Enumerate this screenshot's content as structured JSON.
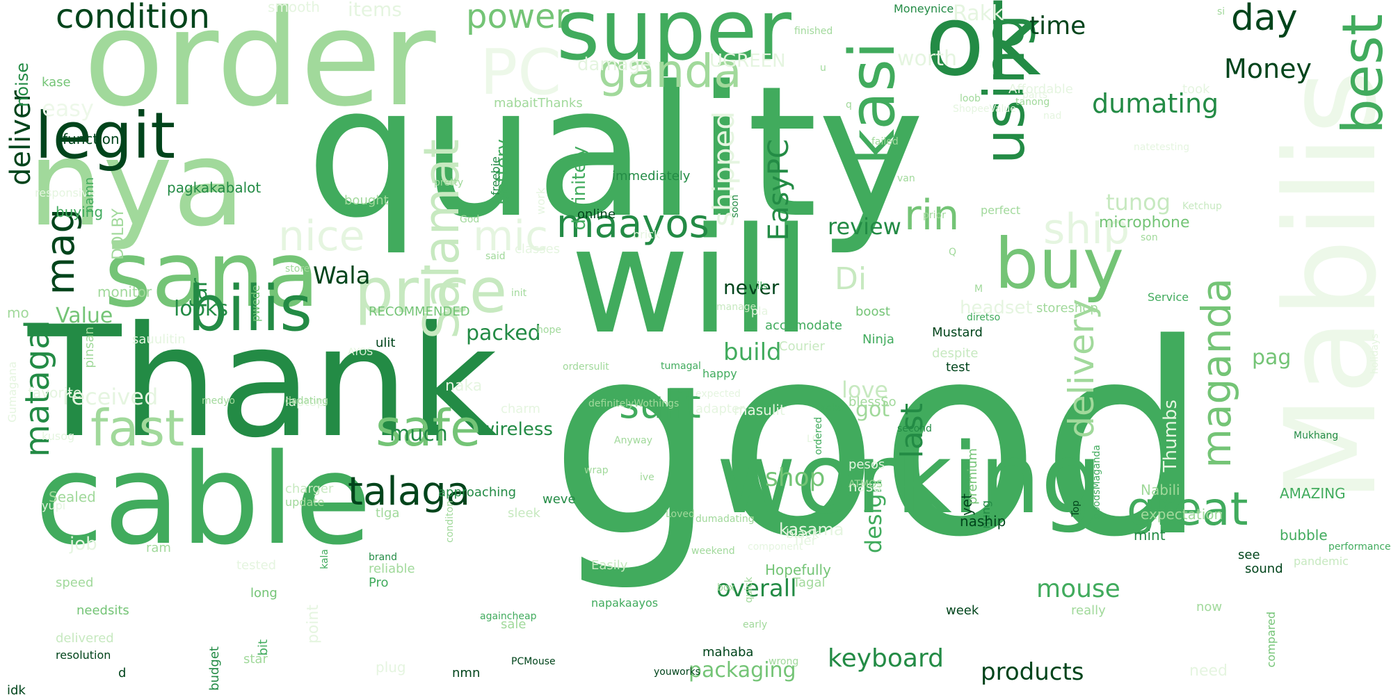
{
  "words": [
    "good",
    "quality",
    "Thank",
    "will",
    "order",
    "cable",
    "working",
    "nya",
    "sana",
    "super",
    "ok",
    "Mabilis",
    "kasi",
    "price",
    "buy",
    "legit",
    "using",
    "bilis",
    "best",
    "great",
    "talaga",
    "ganda",
    "PC",
    "Salamat",
    "safe",
    "fast",
    "maganda",
    "nice",
    "ship",
    "maayos",
    "rin",
    "mic",
    "mag",
    "sulit",
    "delivery",
    "matagal",
    "power",
    "condition",
    "day",
    "Money",
    "dumating",
    "EasyPC",
    "shipped",
    "deliver",
    "review",
    "Di",
    "Wala",
    "overall",
    "mouse",
    "keyboard",
    "products",
    "packaging",
    "build",
    "looks",
    "packed",
    "last",
    "Value",
    "far",
    "much",
    "shop",
    "design",
    "received",
    "love",
    "got",
    "wireless",
    "never",
    "pag",
    "time",
    "tunog",
    "microphone",
    "battery",
    "definitely",
    "UGREEN",
    "damage",
    "worth",
    "Rakk",
    "easy",
    "noise",
    "items",
    "smooth",
    "Moneynice",
    "buying",
    "kase",
    "function",
    "responsive",
    "pagkakabalot",
    "namn",
    "DOLBY",
    "monitor",
    "mo",
    "sauulitin",
    "pinsan",
    "favorite",
    "Gumagana",
    "kusog",
    "yupi",
    "Sealed",
    "job",
    "ram",
    "speed",
    "needsits",
    "delivered",
    "resolution",
    "idk",
    "d",
    "budget",
    "bit",
    "point",
    "plug",
    "nmn",
    "againcheap",
    "PCMouse",
    "youworks",
    "sale",
    "Easily",
    "napakaayos",
    "mahaba",
    "long",
    "tested",
    "Hopefully",
    "Tagal",
    "week",
    "really",
    "compared",
    "need",
    "now",
    "see",
    "sound",
    "bubble",
    "mint",
    "expectation",
    "Nabili",
    "Thumbs",
    "yet",
    "nung",
    "naship",
    "kasama",
    "black",
    "Tier",
    "reliable",
    "brand",
    "Pro",
    "kala",
    "tlga",
    "approaching",
    "weve",
    "nasa",
    "pesos",
    "wrap",
    "sleek",
    "conditon",
    "freebie",
    "work",
    "immediately",
    "Two",
    "bought",
    "classes",
    "brick",
    "soon",
    "fails",
    "expected",
    "pla",
    "accomodate",
    "boost",
    "Ninja",
    "Courier",
    "Mustard",
    "despite",
    "test",
    "headset",
    "tumagal",
    "happy",
    "AYOS",
    "medyo",
    "masulit",
    "mabaitThanks",
    "online",
    "store",
    "pwede",
    "RECOMMENDED",
    "ulit",
    "naka",
    "charm",
    "manage",
    "adapter",
    "laptop",
    "dumadating",
    "component",
    "charger",
    "update",
    "ShopeeValue",
    "ATMOS",
    "LG",
    "star",
    "dadating",
    "natetesting",
    "perfect",
    "diretso",
    "blessSo",
    "storeshop",
    "Service",
    "son",
    "took",
    "loob",
    "second",
    "nad",
    "tanong",
    "Affordable",
    "parts",
    "saka",
    "ordered",
    "quick",
    "Top",
    "premium",
    "AMAZING",
    "si",
    "pandemic",
    "holidays",
    "performance",
    "Ketchup",
    "goodsMaganda",
    "Mukhang",
    "pretty",
    "God",
    "said",
    "init",
    "hope",
    "ordersulit",
    "definitelyWothings",
    "Anyway",
    "ive",
    "Loved",
    "weekend",
    "box",
    "early",
    "wrong",
    "finished",
    "u",
    "q",
    "failed",
    "van",
    "prior",
    "Q",
    "M"
  ]
}
